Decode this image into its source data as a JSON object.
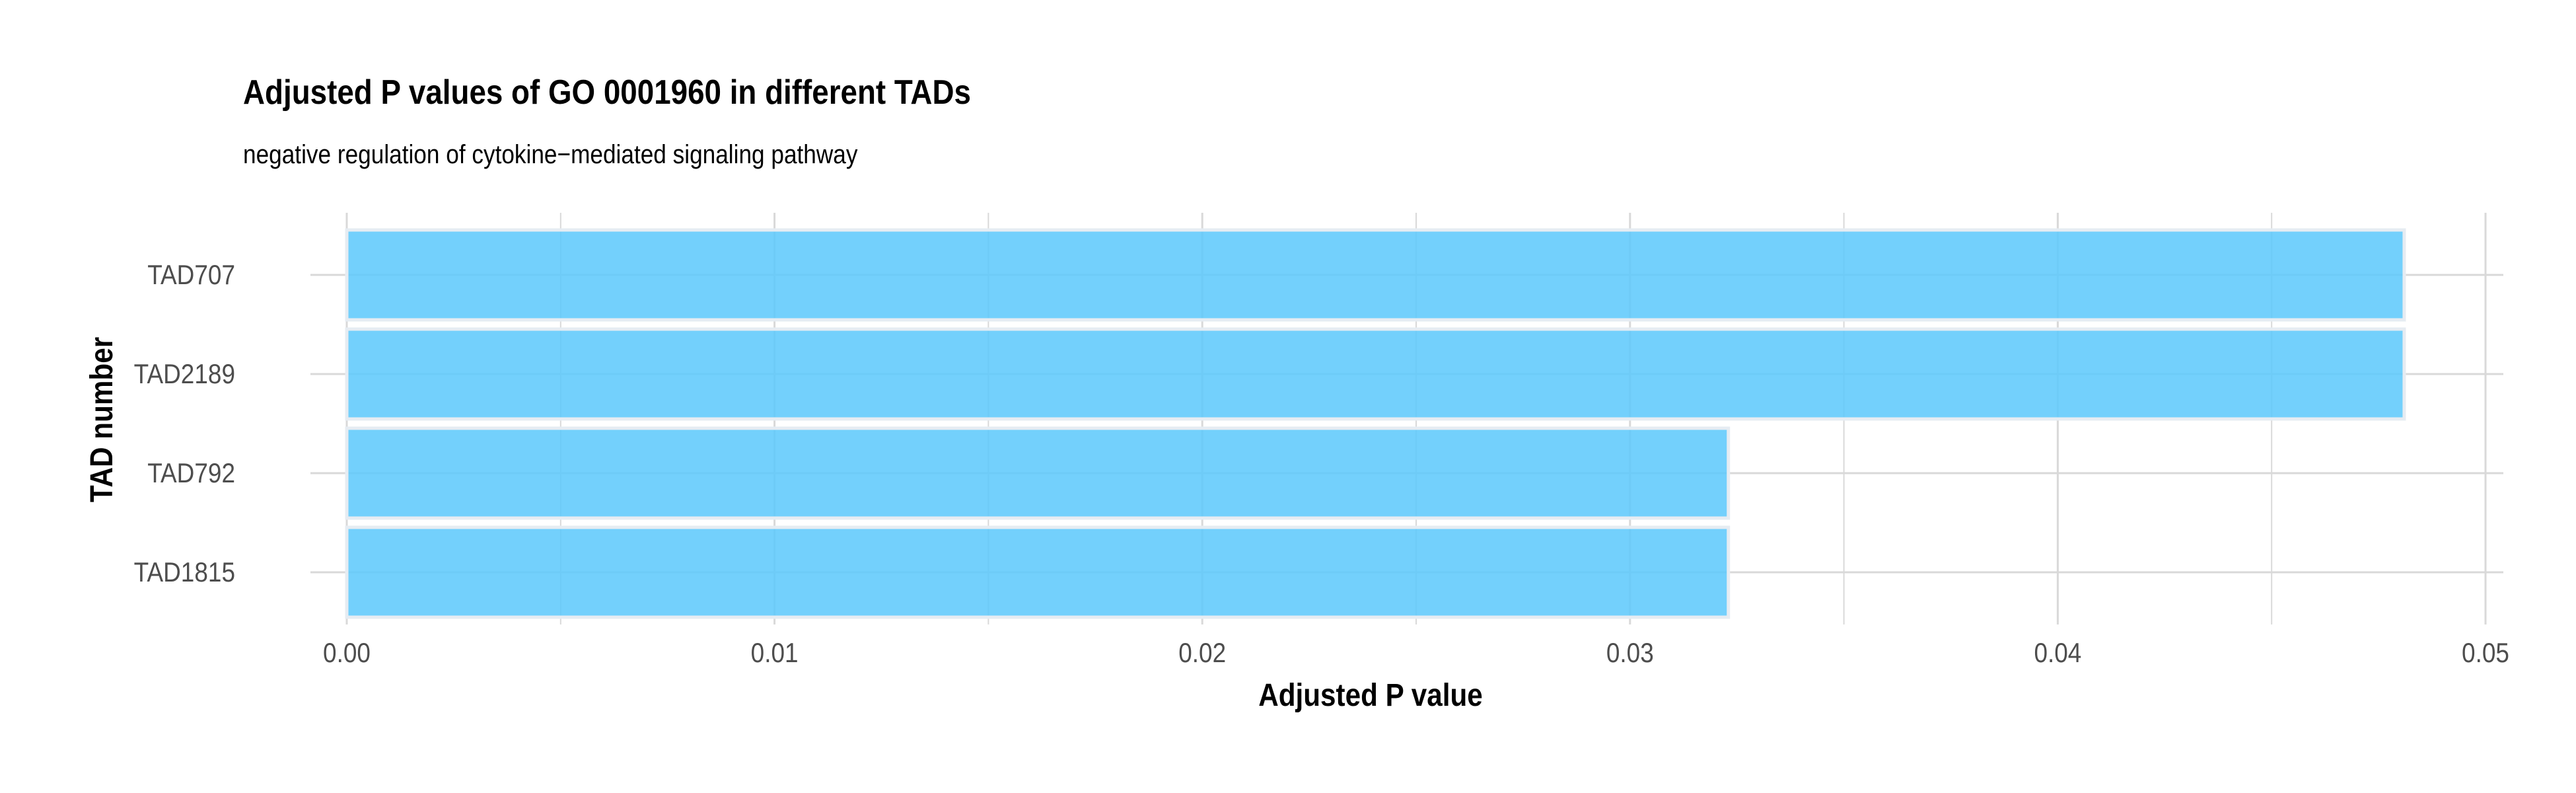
{
  "chart_data": {
    "type": "bar",
    "orientation": "horizontal",
    "title": "Adjusted P values of GO 0001960 in different TADs",
    "subtitle": "negative regulation of cytokine−mediated signaling pathway",
    "xlabel": "Adjusted P value",
    "ylabel": "TAD number",
    "categories": [
      "TAD707",
      "TAD2189",
      "TAD792",
      "TAD1815"
    ],
    "values": [
      0.0481,
      0.0481,
      0.0323,
      0.0323
    ],
    "xlim": [
      0,
      0.05
    ],
    "x_ticks": [
      0.0,
      0.01,
      0.02,
      0.03,
      0.04,
      0.05
    ],
    "x_tick_labels": [
      "0.00",
      "0.01",
      "0.02",
      "0.03",
      "0.04",
      "0.05"
    ],
    "grid": true,
    "bar_color": "#5BC8FC",
    "bar_outline_color": "#E6ECF2",
    "grid_color": "#D9D9D9"
  }
}
